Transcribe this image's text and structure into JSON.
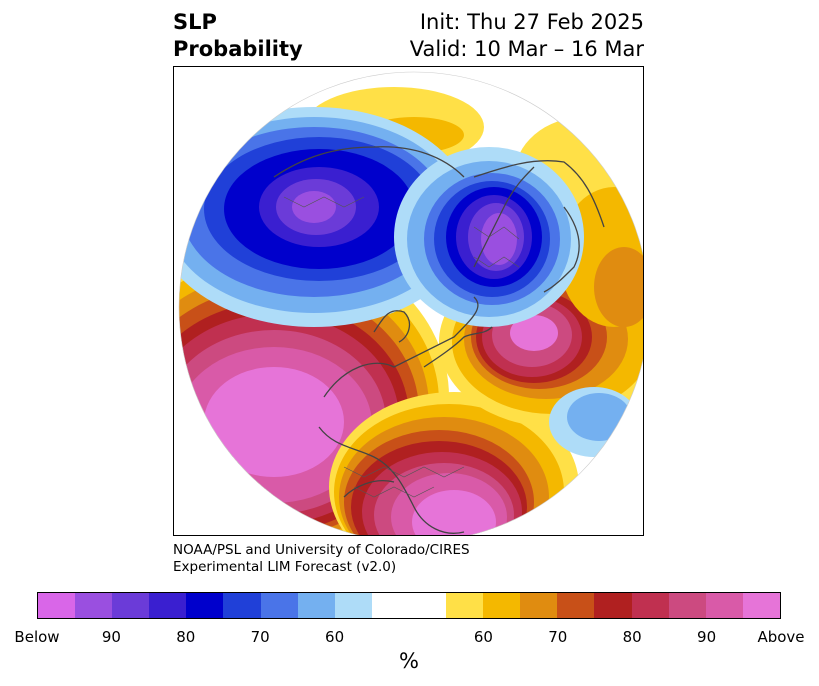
{
  "title": {
    "left_line1": "SLP",
    "left_line2": "Probability",
    "right_line1": "Init: Thu 27 Feb 2025",
    "right_line2": "Valid: 10 Mar – 16 Mar"
  },
  "credit": {
    "line1": "NOAA/PSL and University of Colorado/CIRES",
    "line2": "Experimental LIM Forecast (v2.0)"
  },
  "colorbar": {
    "unit": "%",
    "labels": [
      "Below",
      "90",
      "80",
      "70",
      "60",
      "60",
      "70",
      "80",
      "90",
      "Above"
    ],
    "below_colors": [
      "#d966e8",
      "#9a4fe0",
      "#6b3bd8",
      "#3a1fd0",
      "#0000cc",
      "#2040d8",
      "#4a74e8",
      "#74b0f0",
      "#aedcf8"
    ],
    "neutral_color": "#ffffff",
    "above_colors": [
      "#ffe047",
      "#f4b800",
      "#e08c10",
      "#c85018",
      "#b02020",
      "#c03050",
      "#cc4a80",
      "#d95aa8",
      "#e674d8"
    ]
  },
  "map": {
    "projection": "polar-stereographic-north",
    "features": [
      {
        "name": "anomaly-above-north-pacific",
        "category": "above",
        "peak": "Above"
      },
      {
        "name": "anomaly-above-eastern-us",
        "category": "above",
        "peak": "Above"
      },
      {
        "name": "anomaly-above-north-atlantic",
        "category": "above",
        "peak": "90"
      },
      {
        "name": "anomaly-below-siberia",
        "category": "below",
        "peak": "90"
      },
      {
        "name": "anomaly-below-scandinavia",
        "category": "below",
        "peak": "Below"
      },
      {
        "name": "anomaly-above-mongolia",
        "category": "above",
        "peak": "60"
      },
      {
        "name": "anomaly-above-mediterranean",
        "category": "above",
        "peak": "60"
      }
    ]
  }
}
